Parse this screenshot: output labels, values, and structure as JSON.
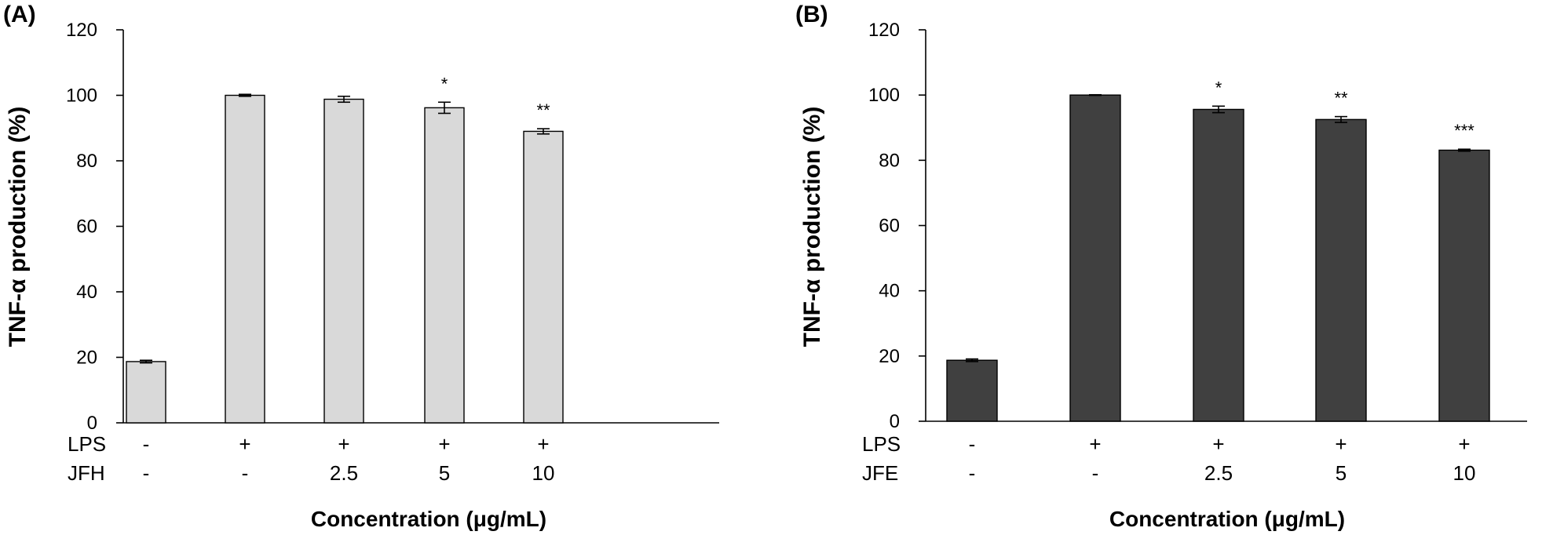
{
  "chart_data": [
    {
      "type": "bar",
      "panel_label": "(A)",
      "ylabel": "TNF-α production (%)",
      "xlabel": "Concentration (μg/mL)",
      "ylim": [
        0,
        120
      ],
      "yticks": [
        "0",
        "20",
        "40",
        "60",
        "80",
        "100",
        "120"
      ],
      "bar_color": "#d9d9d9",
      "grid": false,
      "legend": "none",
      "rows": [
        {
          "label": "LPS",
          "values": [
            "-",
            "+",
            "+",
            "+",
            "+"
          ]
        },
        {
          "label": "JFH",
          "values": [
            "-",
            "-",
            "2.5",
            "5",
            "10"
          ]
        }
      ],
      "series": [
        {
          "values": [
            18.7,
            100.0,
            98.8,
            96.2,
            89.0
          ],
          "errors": [
            0.4,
            0.3,
            0.9,
            1.7,
            0.8
          ]
        }
      ],
      "annotations": [
        "",
        "",
        "",
        "*",
        "**"
      ]
    },
    {
      "type": "bar",
      "panel_label": "(B)",
      "ylabel": "TNF-α production (%)",
      "xlabel": "Concentration (μg/mL)",
      "ylim": [
        0,
        120
      ],
      "yticks": [
        "0",
        "20",
        "40",
        "60",
        "80",
        "100",
        "120"
      ],
      "bar_color": "#404040",
      "grid": false,
      "legend": "none",
      "rows": [
        {
          "label": "LPS",
          "values": [
            "-",
            "+",
            "+",
            "+",
            "+"
          ]
        },
        {
          "label": "JFE",
          "values": [
            "-",
            "-",
            "2.5",
            "5",
            "10"
          ]
        }
      ],
      "series": [
        {
          "values": [
            18.7,
            100.0,
            95.6,
            92.5,
            83.1
          ],
          "errors": [
            0.4,
            0.1,
            1.0,
            0.9,
            0.3
          ]
        }
      ],
      "annotations": [
        "",
        "",
        "*",
        "**",
        "***"
      ]
    }
  ]
}
